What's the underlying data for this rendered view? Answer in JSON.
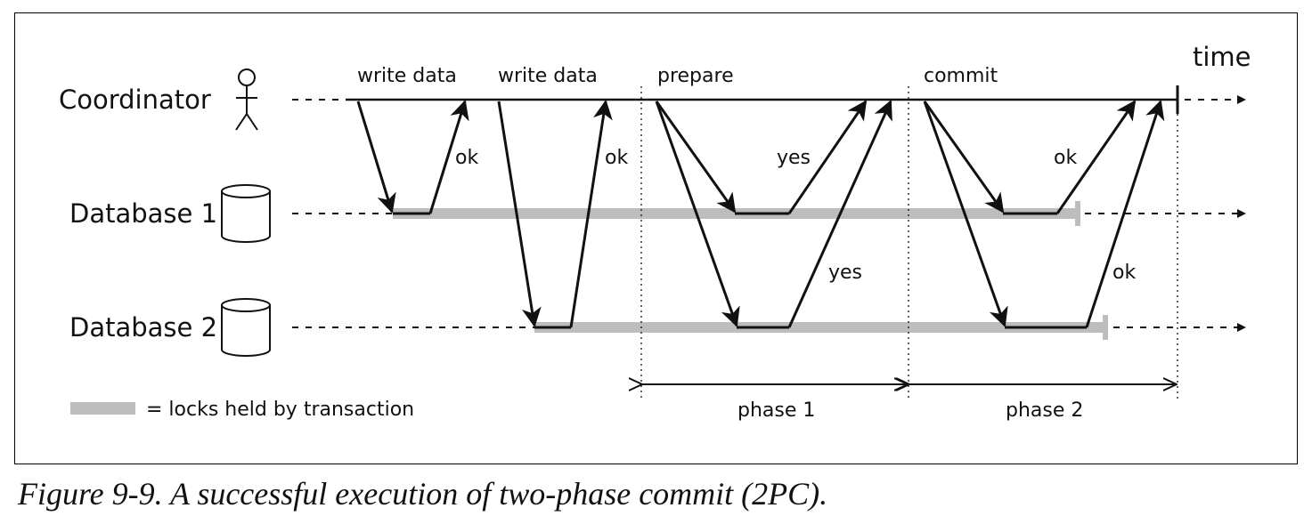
{
  "participants": {
    "coordinator": "Coordinator",
    "database1": "Database 1",
    "database2": "Database 2"
  },
  "time_label": "time",
  "messages": {
    "write_data_1": "write data",
    "write_data_2": "write data",
    "prepare": "prepare",
    "commit": "commit",
    "ok_db1_write": "ok",
    "ok_db2_write": "ok",
    "yes_db1": "yes",
    "yes_db2": "yes",
    "ok_db1_commit": "ok",
    "ok_db2_commit": "ok"
  },
  "phases": {
    "phase1": "phase 1",
    "phase2": "phase 2"
  },
  "legend": {
    "locks": "= locks held by transaction"
  },
  "colors": {
    "lock_bar": "#bdbdbd",
    "line": "#111111"
  },
  "caption": "Figure 9-9. A successful execution of two-phase commit (2PC)."
}
